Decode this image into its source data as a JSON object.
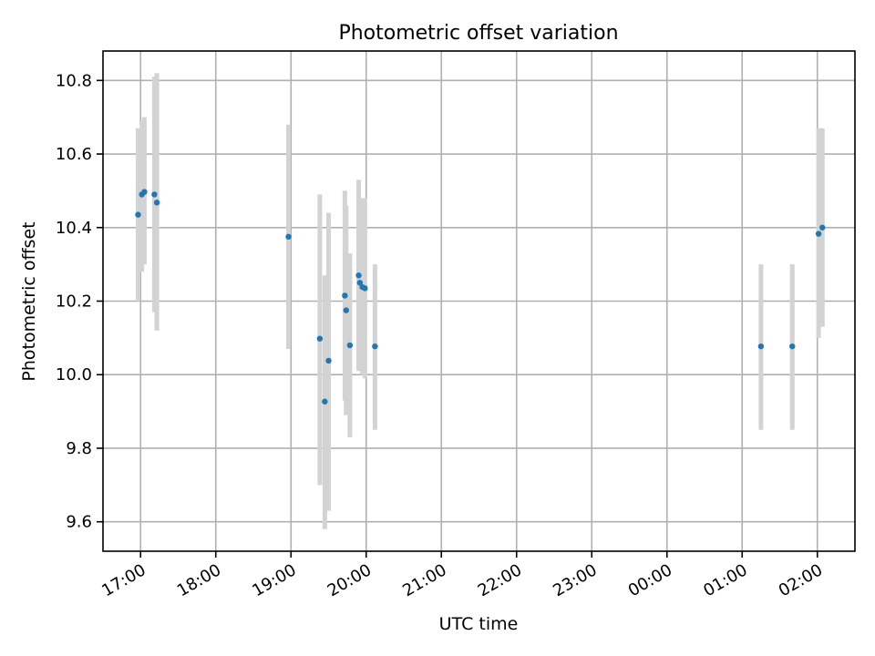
{
  "chart_data": {
    "type": "scatter",
    "title": "Photometric offset variation",
    "xlabel": "UTC time",
    "ylabel": "Photometric offset",
    "x_ticks": [
      "17:00",
      "18:00",
      "19:00",
      "20:00",
      "21:00",
      "22:00",
      "23:00",
      "00:00",
      "01:00",
      "02:00"
    ],
    "y_ticks": [
      "9.6",
      "9.8",
      "10.0",
      "10.2",
      "10.4",
      "10.6",
      "10.8"
    ],
    "xlim": [
      "16:30",
      "02:30 (+1 day)"
    ],
    "ylim": [
      9.52,
      10.88
    ],
    "grid": true,
    "marker_color": "#1f77b4",
    "errorbar_color": "#d3d3d3",
    "points": [
      {
        "t": "16:58",
        "y": 10.435,
        "ylo": 10.2,
        "yhi": 10.67
      },
      {
        "t": "17:01",
        "y": 10.49,
        "ylo": 10.28,
        "yhi": 10.69
      },
      {
        "t": "17:03",
        "y": 10.497,
        "ylo": 10.3,
        "yhi": 10.7
      },
      {
        "t": "17:11",
        "y": 10.49,
        "ylo": 10.17,
        "yhi": 10.81
      },
      {
        "t": "17:13",
        "y": 10.468,
        "ylo": 10.12,
        "yhi": 10.82
      },
      {
        "t": "18:58",
        "y": 10.375,
        "ylo": 10.07,
        "yhi": 10.68
      },
      {
        "t": "19:23",
        "y": 10.098,
        "ylo": 9.7,
        "yhi": 10.49
      },
      {
        "t": "19:27",
        "y": 9.927,
        "ylo": 9.58,
        "yhi": 10.27
      },
      {
        "t": "19:30",
        "y": 10.038,
        "ylo": 9.63,
        "yhi": 10.44
      },
      {
        "t": "19:43",
        "y": 10.215,
        "ylo": 9.93,
        "yhi": 10.5
      },
      {
        "t": "19:44",
        "y": 10.175,
        "ylo": 9.89,
        "yhi": 10.46
      },
      {
        "t": "19:47",
        "y": 10.08,
        "ylo": 9.83,
        "yhi": 10.33
      },
      {
        "t": "19:54",
        "y": 10.27,
        "ylo": 10.01,
        "yhi": 10.53
      },
      {
        "t": "19:55",
        "y": 10.25,
        "ylo": 10.02,
        "yhi": 10.48
      },
      {
        "t": "19:57",
        "y": 10.238,
        "ylo": 10.0,
        "yhi": 10.48
      },
      {
        "t": "19:59",
        "y": 10.235,
        "ylo": 9.99,
        "yhi": 10.48
      },
      {
        "t": "20:07",
        "y": 10.077,
        "ylo": 9.85,
        "yhi": 10.3
      },
      {
        "t": "01:15 (+1 day)",
        "y": 10.077,
        "ylo": 9.85,
        "yhi": 10.3
      },
      {
        "t": "01:40 (+1 day)",
        "y": 10.077,
        "ylo": 9.85,
        "yhi": 10.3
      },
      {
        "t": "02:01 (+1 day)",
        "y": 10.383,
        "ylo": 10.1,
        "yhi": 10.67
      },
      {
        "t": "02:04 (+1 day)",
        "y": 10.4,
        "ylo": 10.13,
        "yhi": 10.67
      }
    ]
  }
}
